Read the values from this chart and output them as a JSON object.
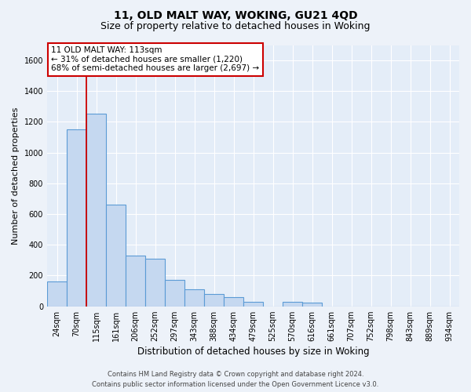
{
  "title1": "11, OLD MALT WAY, WOKING, GU21 4QD",
  "title2": "Size of property relative to detached houses in Woking",
  "xlabel": "Distribution of detached houses by size in Woking",
  "ylabel": "Number of detached properties",
  "bar_color": "#c5d8f0",
  "bar_edge_color": "#5b9bd5",
  "categories": [
    "24sqm",
    "70sqm",
    "115sqm",
    "161sqm",
    "206sqm",
    "252sqm",
    "297sqm",
    "343sqm",
    "388sqm",
    "434sqm",
    "479sqm",
    "525sqm",
    "570sqm",
    "616sqm",
    "661sqm",
    "707sqm",
    "752sqm",
    "798sqm",
    "843sqm",
    "889sqm",
    "934sqm"
  ],
  "values": [
    160,
    1150,
    1255,
    660,
    330,
    310,
    170,
    110,
    80,
    60,
    30,
    0,
    30,
    25,
    0,
    0,
    0,
    0,
    0,
    0,
    0
  ],
  "ylim": [
    0,
    1700
  ],
  "yticks": [
    0,
    200,
    400,
    600,
    800,
    1000,
    1200,
    1400,
    1600
  ],
  "property_line_x": 1.5,
  "annotation_line1": "11 OLD MALT WAY: 113sqm",
  "annotation_line2": "← 31% of detached houses are smaller (1,220)",
  "annotation_line3": "68% of semi-detached houses are larger (2,697) →",
  "annotation_box_color": "#ffffff",
  "annotation_border_color": "#cc0000",
  "footer1": "Contains HM Land Registry data © Crown copyright and database right 2024.",
  "footer2": "Contains public sector information licensed under the Open Government Licence v3.0.",
  "bg_color": "#edf2f9",
  "plot_bg_color": "#e4edf8",
  "grid_color": "#ffffff",
  "title1_fontsize": 10,
  "title2_fontsize": 9,
  "ylabel_fontsize": 8,
  "xlabel_fontsize": 8.5,
  "tick_fontsize": 7,
  "footer_fontsize": 6,
  "annot_fontsize": 7.5
}
